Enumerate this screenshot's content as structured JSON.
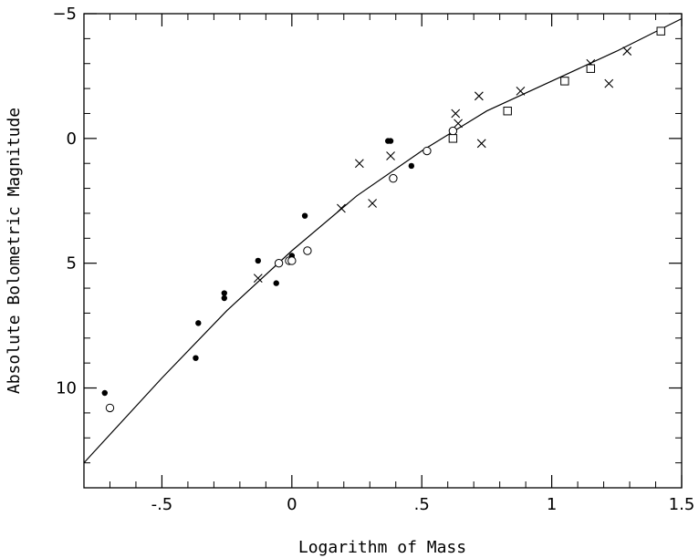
{
  "chart_data": {
    "type": "scatter",
    "title": "",
    "xlabel": "Logarithm of Mass",
    "ylabel": "Absolute Bolometric Magnitude",
    "xlim": [
      -0.8,
      1.5
    ],
    "ylim": [
      14,
      -5
    ],
    "y_inverted": true,
    "grid": false,
    "legend": "none",
    "x_ticks": [
      {
        "value": -0.5,
        "label": "-.5"
      },
      {
        "value": 0,
        "label": "0"
      },
      {
        "value": 0.5,
        "label": ".5"
      },
      {
        "value": 1,
        "label": "1"
      },
      {
        "value": 1.5,
        "label": "1.5"
      }
    ],
    "y_ticks": [
      {
        "value": -5,
        "label": "−5"
      },
      {
        "value": 0,
        "label": "0"
      },
      {
        "value": 5,
        "label": "5"
      },
      {
        "value": 10,
        "label": "10"
      }
    ],
    "series": [
      {
        "marker": "filled-circle",
        "points": [
          [
            -0.72,
            10.2
          ],
          [
            -0.36,
            7.4
          ],
          [
            -0.37,
            8.8
          ],
          [
            -0.26,
            6.2
          ],
          [
            -0.26,
            6.4
          ],
          [
            -0.13,
            4.9
          ],
          [
            -0.06,
            5.8
          ],
          [
            0,
            4.7
          ],
          [
            0,
            4.8
          ],
          [
            0.05,
            3.1
          ],
          [
            0.37,
            0.1
          ],
          [
            0.38,
            0.1
          ],
          [
            0.46,
            1.1
          ]
        ]
      },
      {
        "marker": "open-circle",
        "points": [
          [
            -0.7,
            10.8
          ],
          [
            -0.05,
            5
          ],
          [
            -0.01,
            4.9
          ],
          [
            0,
            4.9
          ],
          [
            0.06,
            4.5
          ],
          [
            0.39,
            1.6
          ],
          [
            0.52,
            0.5
          ],
          [
            0.62,
            -0.3
          ]
        ]
      },
      {
        "marker": "cross",
        "points": [
          [
            -0.13,
            5.6
          ],
          [
            0.19,
            2.8
          ],
          [
            0.26,
            1
          ],
          [
            0.31,
            2.6
          ],
          [
            0.38,
            0.7
          ],
          [
            0.63,
            -1
          ],
          [
            0.64,
            -0.6
          ],
          [
            0.72,
            -1.7
          ],
          [
            0.73,
            0.2
          ],
          [
            0.88,
            -1.9
          ],
          [
            1.15,
            -3
          ],
          [
            1.22,
            -2.2
          ],
          [
            1.29,
            -3.5
          ]
        ]
      },
      {
        "marker": "open-square",
        "points": [
          [
            0.62,
            0
          ],
          [
            0.83,
            -1.1
          ],
          [
            1.05,
            -2.3
          ],
          [
            1.15,
            -2.8
          ],
          [
            1.42,
            -4.3
          ]
        ]
      }
    ],
    "fit_line": {
      "points": [
        [
          -0.8,
          13
        ],
        [
          -0.5,
          9.6
        ],
        [
          -0.25,
          6.9
        ],
        [
          0,
          4.5
        ],
        [
          0.25,
          2.3
        ],
        [
          0.5,
          0.5
        ],
        [
          0.75,
          -1.1
        ],
        [
          1,
          -2.3
        ],
        [
          1.25,
          -3.5
        ],
        [
          1.5,
          -4.8
        ]
      ]
    }
  }
}
